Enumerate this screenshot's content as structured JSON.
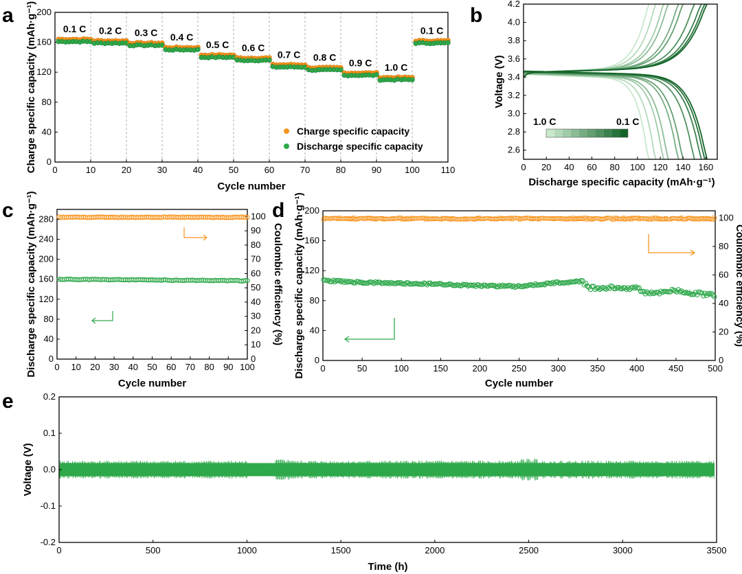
{
  "colors": {
    "orange": "#F7941D",
    "green": "#2EA84A",
    "dark_green": "#1E7A2E",
    "light_green": "#C9E8CC"
  },
  "chart_data": [
    {
      "panel": "a",
      "type": "scatter",
      "xlabel": "Cycle number",
      "ylabel": "Charge specific capacity (mAh·g⁻¹)",
      "xlim": [
        0,
        110
      ],
      "ylim": [
        0,
        200
      ],
      "xticks": [
        "0",
        "10",
        "20",
        "30",
        "40",
        "50",
        "60",
        "70",
        "80",
        "90",
        "100",
        "110"
      ],
      "yticks": [
        "0",
        "40",
        "80",
        "120",
        "160",
        "200"
      ],
      "rate_labels": [
        "0.1 C",
        "0.2 C",
        "0.3 C",
        "0.4 C",
        "0.5 C",
        "0.6 C",
        "0.7 C",
        "0.8 C",
        "0.9 C",
        "1.0 C",
        "0.1 C"
      ],
      "segments": [
        {
          "x0": 1,
          "x1": 10,
          "charge": 164,
          "discharge": 161
        },
        {
          "x0": 11,
          "x1": 20,
          "charge": 162,
          "discharge": 159
        },
        {
          "x0": 21,
          "x1": 30,
          "charge": 159,
          "discharge": 156
        },
        {
          "x0": 31,
          "x1": 40,
          "charge": 153,
          "discharge": 150
        },
        {
          "x0": 41,
          "x1": 50,
          "charge": 143,
          "discharge": 140
        },
        {
          "x0": 51,
          "x1": 60,
          "charge": 139,
          "discharge": 136
        },
        {
          "x0": 61,
          "x1": 70,
          "charge": 130,
          "discharge": 127
        },
        {
          "x0": 71,
          "x1": 80,
          "charge": 126,
          "discharge": 123
        },
        {
          "x0": 81,
          "x1": 90,
          "charge": 119,
          "discharge": 116
        },
        {
          "x0": 91,
          "x1": 100,
          "charge": 113,
          "discharge": 110
        },
        {
          "x0": 101,
          "x1": 110,
          "charge": 162,
          "discharge": 159
        }
      ],
      "legend": [
        "Charge specific capacity",
        "Discharge specific capacity"
      ],
      "legend_position": "bottom-right",
      "grid": "vertical dashed at every 10 cycles"
    },
    {
      "panel": "b",
      "type": "line",
      "xlabel": "Discharge specific capacity (mAh·g⁻¹)",
      "ylabel": "Voltage (V)",
      "xlim": [
        0,
        170
      ],
      "ylim": [
        2.5,
        4.2
      ],
      "xticks": [
        "0",
        "20",
        "40",
        "60",
        "80",
        "100",
        "120",
        "140",
        "160"
      ],
      "yticks": [
        "2.6",
        "2.8",
        "3.0",
        "3.2",
        "3.4",
        "3.6",
        "3.8",
        "4.0",
        "4.2"
      ],
      "colorbar_labels": [
        "1.0 C",
        "0.1 C"
      ],
      "curves_capacity_end": [
        110,
        116,
        123,
        127,
        136,
        140,
        150,
        156,
        159,
        161
      ]
    },
    {
      "panel": "c",
      "type": "scatter",
      "xlabel": "Cycle number",
      "ylabel": "Discharge specific capacity (mAh·g⁻¹)",
      "ylabel_right": "Coulombic efficiency (%)",
      "xlim": [
        0,
        100
      ],
      "ylim": [
        0,
        300
      ],
      "ylim_right": [
        0,
        105
      ],
      "xticks": [
        "0",
        "10",
        "20",
        "30",
        "40",
        "50",
        "60",
        "70",
        "80",
        "90",
        "100"
      ],
      "yticks": [
        "0",
        "40",
        "80",
        "120",
        "160",
        "200",
        "240",
        "280"
      ],
      "yticks_right": [
        "0",
        "10",
        "20",
        "30",
        "40",
        "50",
        "60",
        "70",
        "80",
        "90",
        "100"
      ],
      "capacity_start": 160,
      "capacity_end": 157,
      "efficiency": 99.5
    },
    {
      "panel": "d",
      "type": "scatter",
      "xlabel": "Cycle number",
      "ylabel": "Discharge specific capacity (mAh·g⁻¹)",
      "ylabel_right": "Coulombic efficiency (%)",
      "xlim": [
        0,
        500
      ],
      "ylim": [
        0,
        200
      ],
      "ylim_right": [
        0,
        105
      ],
      "xticks": [
        "0",
        "50",
        "100",
        "150",
        "200",
        "250",
        "300",
        "350",
        "400",
        "450",
        "500"
      ],
      "yticks": [
        "0",
        "40",
        "80",
        "120",
        "160",
        "200"
      ],
      "yticks_right": [
        "0",
        "20",
        "40",
        "60",
        "80",
        "100"
      ],
      "capacity_x": [
        0,
        50,
        100,
        150,
        200,
        250,
        300,
        330,
        340,
        400,
        410,
        450,
        500
      ],
      "capacity_y": [
        107,
        104,
        103,
        102,
        100,
        99,
        104,
        106,
        97,
        97,
        90,
        93,
        87
      ],
      "efficiency": 99.5
    },
    {
      "panel": "e",
      "type": "line",
      "xlabel": "Time (h)",
      "ylabel": "Voltage (V)",
      "xlim": [
        0,
        3500
      ],
      "ylim": [
        -0.2,
        0.2
      ],
      "xticks": [
        "0",
        "500",
        "1000",
        "1500",
        "2000",
        "2500",
        "3000",
        "3500"
      ],
      "yticks": [
        "-0.2",
        "-0.1",
        "0.0",
        "0.1",
        "0.2"
      ],
      "amplitude": 0.025
    }
  ]
}
